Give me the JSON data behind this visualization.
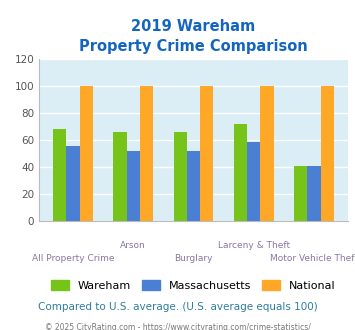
{
  "title_line1": "2019 Wareham",
  "title_line2": "Property Crime Comparison",
  "categories": [
    "All Property Crime",
    "Arson",
    "Burglary",
    "Larceny & Theft",
    "Motor Vehicle Theft"
  ],
  "label_top_row": [
    false,
    true,
    false,
    true,
    false
  ],
  "wareham": [
    68,
    66,
    66,
    72,
    41
  ],
  "massachusetts": [
    56,
    52,
    52,
    59,
    41
  ],
  "national": [
    100,
    100,
    100,
    100,
    100
  ],
  "color_wareham": "#76c41a",
  "color_massachusetts": "#4a7fd4",
  "color_national": "#ffa726",
  "ylim": [
    0,
    120
  ],
  "yticks": [
    0,
    20,
    40,
    60,
    80,
    100,
    120
  ],
  "background_color": "#dceef5",
  "title_color": "#1565c0",
  "xlabel_color": "#8878a0",
  "footer_note": "Compared to U.S. average. (U.S. average equals 100)",
  "footer_copy": "© 2025 CityRating.com - https://www.cityrating.com/crime-statistics/",
  "footer_note_color": "#2e7d9e",
  "footer_url_color": "#5588cc",
  "footer_copy_color": "#777777",
  "legend_labels": [
    "Wareham",
    "Massachusetts",
    "National"
  ],
  "bar_width": 0.22
}
